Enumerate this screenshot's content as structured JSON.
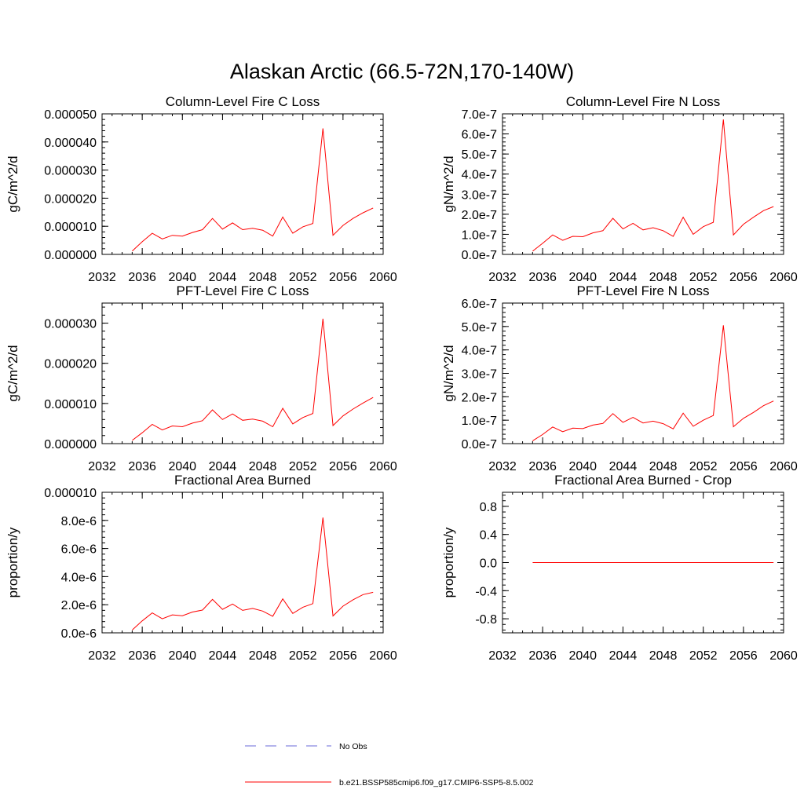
{
  "figure": {
    "title": "Alaskan Arctic (66.5-72N,170-140W)"
  },
  "legend": {
    "entries": [
      {
        "label": "No Obs",
        "color": "#6a6ad8",
        "style": "dashed"
      },
      {
        "label": "b.e21.BSSP585cmip6.f09_g17.CMIP6-SSP5-8.5.002",
        "color": "#ff0000",
        "style": "solid"
      }
    ]
  },
  "chart_data": [
    {
      "type": "line",
      "title": "Column-Level Fire C Loss",
      "ylabel": "gC/m^2/d",
      "xlabel": "",
      "xlim": [
        2032,
        2060
      ],
      "ylim": [
        0,
        5e-05
      ],
      "xticks": [
        2032,
        2036,
        2040,
        2044,
        2048,
        2052,
        2056,
        2060
      ],
      "xtick_labels": [
        "2032",
        "2036",
        "2040",
        "2044",
        "2048",
        "2052",
        "2056",
        "2060"
      ],
      "yticks": [
        0,
        1e-05,
        2e-05,
        3e-05,
        4e-05,
        5e-05
      ],
      "ytick_labels": [
        "0.000000",
        "0.000010",
        "0.000020",
        "0.000030",
        "0.000040",
        "0.000050"
      ],
      "series": [
        {
          "name": "b.e21.BSSP585cmip6.f09_g17.CMIP6-SSP5-8.5.002",
          "color": "#ff0000",
          "x": [
            2035,
            2036,
            2037,
            2038,
            2039,
            2040,
            2041,
            2042,
            2043,
            2044,
            2045,
            2046,
            2047,
            2048,
            2049,
            2050,
            2051,
            2052,
            2053,
            2054,
            2055,
            2056,
            2057,
            2058,
            2059
          ],
          "y": [
            1.2e-06,
            4.5e-06,
            7.5e-06,
            5.5e-06,
            6.8e-06,
            6.5e-06,
            7.8e-06,
            8.8e-06,
            1.28e-05,
            9e-06,
            1.12e-05,
            8.8e-06,
            9.3e-06,
            8.6e-06,
            6.5e-06,
            1.33e-05,
            7.5e-06,
            9.8e-06,
            1.1e-05,
            4.48e-05,
            6.8e-06,
            1.03e-05,
            1.28e-05,
            1.48e-05,
            1.65e-05
          ]
        }
      ]
    },
    {
      "type": "line",
      "title": "Column-Level Fire N Loss",
      "ylabel": "gN/m^2/d",
      "xlabel": "",
      "xlim": [
        2032,
        2060
      ],
      "ylim": [
        0,
        7e-07
      ],
      "xticks": [
        2032,
        2036,
        2040,
        2044,
        2048,
        2052,
        2056,
        2060
      ],
      "xtick_labels": [
        "2032",
        "2036",
        "2040",
        "2044",
        "2048",
        "2052",
        "2056",
        "2060"
      ],
      "yticks": [
        0,
        1e-07,
        2e-07,
        3e-07,
        4e-07,
        5e-07,
        6e-07,
        7e-07
      ],
      "ytick_labels": [
        "0.0e-7",
        "1.0e-7",
        "2.0e-7",
        "3.0e-7",
        "4.0e-7",
        "5.0e-7",
        "6.0e-7",
        "7.0e-7"
      ],
      "series": [
        {
          "name": "b.e21.BSSP585cmip6.f09_g17.CMIP6-SSP5-8.5.002",
          "color": "#ff0000",
          "x": [
            2035,
            2036,
            2037,
            2038,
            2039,
            2040,
            2041,
            2042,
            2043,
            2044,
            2045,
            2046,
            2047,
            2048,
            2049,
            2050,
            2051,
            2052,
            2053,
            2054,
            2055,
            2056,
            2057,
            2058,
            2059
          ],
          "y": [
            1.6e-08,
            5.5e-08,
            9.7e-08,
            7e-08,
            9e-08,
            8.8e-08,
            1.07e-07,
            1.18e-07,
            1.8e-07,
            1.27e-07,
            1.55e-07,
            1.22e-07,
            1.33e-07,
            1.18e-07,
            9e-08,
            1.85e-07,
            1e-07,
            1.38e-07,
            1.6e-07,
            6.72e-07,
            9.7e-08,
            1.5e-07,
            1.85e-07,
            2.18e-07,
            2.38e-07
          ]
        }
      ]
    },
    {
      "type": "line",
      "title": "PFT-Level Fire C Loss",
      "ylabel": "gC/m^2/d",
      "xlabel": "",
      "xlim": [
        2032,
        2060
      ],
      "ylim": [
        0,
        3.5e-05
      ],
      "xticks": [
        2032,
        2036,
        2040,
        2044,
        2048,
        2052,
        2056,
        2060
      ],
      "xtick_labels": [
        "2032",
        "2036",
        "2040",
        "2044",
        "2048",
        "2052",
        "2056",
        "2060"
      ],
      "yticks": [
        0,
        1e-05,
        2e-05,
        3e-05
      ],
      "ytick_labels": [
        "0.000000",
        "0.000010",
        "0.000020",
        "0.000030"
      ],
      "series": [
        {
          "name": "b.e21.BSSP585cmip6.f09_g17.CMIP6-SSP5-8.5.002",
          "color": "#ff0000",
          "x": [
            2035,
            2036,
            2037,
            2038,
            2039,
            2040,
            2041,
            2042,
            2043,
            2044,
            2045,
            2046,
            2047,
            2048,
            2049,
            2050,
            2051,
            2052,
            2053,
            2054,
            2055,
            2056,
            2057,
            2058,
            2059
          ],
          "y": [
            8e-07,
            2.7e-06,
            4.8e-06,
            3.4e-06,
            4.4e-06,
            4.2e-06,
            5.1e-06,
            5.7e-06,
            8.4e-06,
            6e-06,
            7.4e-06,
            5.8e-06,
            6.1e-06,
            5.6e-06,
            4.2e-06,
            8.8e-06,
            4.9e-06,
            6.5e-06,
            7.5e-06,
            3.11e-05,
            4.5e-06,
            6.9e-06,
            8.6e-06,
            1.01e-05,
            1.15e-05
          ]
        }
      ]
    },
    {
      "type": "line",
      "title": "PFT-Level Fire N Loss",
      "ylabel": "gN/m^2/d",
      "xlabel": "",
      "xlim": [
        2032,
        2060
      ],
      "ylim": [
        0,
        6e-07
      ],
      "xticks": [
        2032,
        2036,
        2040,
        2044,
        2048,
        2052,
        2056,
        2060
      ],
      "xtick_labels": [
        "2032",
        "2036",
        "2040",
        "2044",
        "2048",
        "2052",
        "2056",
        "2060"
      ],
      "yticks": [
        0,
        1e-07,
        2e-07,
        3e-07,
        4e-07,
        5e-07,
        6e-07
      ],
      "ytick_labels": [
        "0.0e-7",
        "1.0e-7",
        "2.0e-7",
        "3.0e-7",
        "4.0e-7",
        "5.0e-7",
        "6.0e-7"
      ],
      "series": [
        {
          "name": "b.e21.BSSP585cmip6.f09_g17.CMIP6-SSP5-8.5.002",
          "color": "#ff0000",
          "x": [
            2035,
            2036,
            2037,
            2038,
            2039,
            2040,
            2041,
            2042,
            2043,
            2044,
            2045,
            2046,
            2047,
            2048,
            2049,
            2050,
            2051,
            2052,
            2053,
            2054,
            2055,
            2056,
            2057,
            2058,
            2059
          ],
          "y": [
            1.2e-08,
            3.9e-08,
            7.1e-08,
            5.1e-08,
            6.6e-08,
            6.4e-08,
            7.9e-08,
            8.6e-08,
            1.28e-07,
            9.1e-08,
            1.12e-07,
            8.8e-08,
            9.6e-08,
            8.5e-08,
            6.3e-08,
            1.3e-07,
            7.4e-08,
            1e-07,
            1.2e-07,
            5.05e-07,
            7.2e-08,
            1.08e-07,
            1.33e-07,
            1.62e-07,
            1.82e-07
          ]
        }
      ]
    },
    {
      "type": "line",
      "title": "Fractional Area Burned",
      "ylabel": "proportion/y",
      "xlabel": "",
      "xlim": [
        2032,
        2060
      ],
      "ylim": [
        0,
        1e-05
      ],
      "xticks": [
        2032,
        2036,
        2040,
        2044,
        2048,
        2052,
        2056,
        2060
      ],
      "xtick_labels": [
        "2032",
        "2036",
        "2040",
        "2044",
        "2048",
        "2052",
        "2056",
        "2060"
      ],
      "yticks": [
        0,
        2e-06,
        4e-06,
        6e-06,
        8e-06,
        1e-05
      ],
      "ytick_labels": [
        "0.0e-6",
        "2.0e-6",
        "4.0e-6",
        "6.0e-6",
        "8.0e-6",
        "0.000010"
      ],
      "series": [
        {
          "name": "b.e21.BSSP585cmip6.f09_g17.CMIP6-SSP5-8.5.002",
          "color": "#ff0000",
          "x": [
            2035,
            2036,
            2037,
            2038,
            2039,
            2040,
            2041,
            2042,
            2043,
            2044,
            2045,
            2046,
            2047,
            2048,
            2049,
            2050,
            2051,
            2052,
            2053,
            2054,
            2055,
            2056,
            2057,
            2058,
            2059
          ],
          "y": [
            2e-07,
            8.5e-07,
            1.42e-06,
            1e-06,
            1.28e-06,
            1.22e-06,
            1.48e-06,
            1.62e-06,
            2.38e-06,
            1.67e-06,
            2.05e-06,
            1.6e-06,
            1.74e-06,
            1.55e-06,
            1.18e-06,
            2.42e-06,
            1.38e-06,
            1.82e-06,
            2.08e-06,
            8.2e-06,
            1.2e-06,
            1.9e-06,
            2.35e-06,
            2.72e-06,
            2.88e-06
          ]
        }
      ]
    },
    {
      "type": "line",
      "title": "Fractional Area Burned - Crop",
      "ylabel": "proportion/y",
      "xlabel": "",
      "xlim": [
        2032,
        2060
      ],
      "ylim": [
        -1,
        1
      ],
      "xticks": [
        2032,
        2036,
        2040,
        2044,
        2048,
        2052,
        2056,
        2060
      ],
      "xtick_labels": [
        "2032",
        "2036",
        "2040",
        "2044",
        "2048",
        "2052",
        "2056",
        "2060"
      ],
      "yticks": [
        -0.8,
        -0.4,
        0,
        0.4,
        0.8
      ],
      "ytick_labels": [
        "-0.8",
        "-0.4",
        "0.0",
        "0.4",
        "0.8"
      ],
      "series": [
        {
          "name": "b.e21.BSSP585cmip6.f09_g17.CMIP6-SSP5-8.5.002",
          "color": "#ff0000",
          "x": [
            2035,
            2036,
            2037,
            2038,
            2039,
            2040,
            2041,
            2042,
            2043,
            2044,
            2045,
            2046,
            2047,
            2048,
            2049,
            2050,
            2051,
            2052,
            2053,
            2054,
            2055,
            2056,
            2057,
            2058,
            2059
          ],
          "y": [
            0,
            0,
            0,
            0,
            0,
            0,
            0,
            0,
            0,
            0,
            0,
            0,
            0,
            0,
            0,
            0,
            0,
            0,
            0,
            0,
            0,
            0,
            0,
            0,
            0
          ]
        }
      ]
    }
  ]
}
